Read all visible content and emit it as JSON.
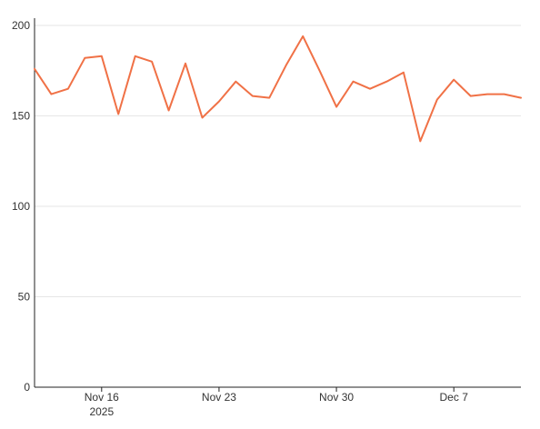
{
  "chart_data": {
    "type": "line",
    "title": "",
    "xlabel": "",
    "ylabel": "",
    "ylim": [
      0,
      200
    ],
    "yticks": [
      0,
      50,
      100,
      150,
      200
    ],
    "grid": {
      "horizontal": true,
      "vertical": false
    },
    "x_range": [
      "2025-11-12",
      "2025-12-11"
    ],
    "xtick_labels": [
      {
        "date": "2025-11-16",
        "label": "Nov 16",
        "sublabel": "2025"
      },
      {
        "date": "2025-11-23",
        "label": "Nov 23",
        "sublabel": ""
      },
      {
        "date": "2025-11-30",
        "label": "Nov 30",
        "sublabel": ""
      },
      {
        "date": "2025-12-07",
        "label": "Dec 7",
        "sublabel": ""
      }
    ],
    "series": [
      {
        "color": "#f07146",
        "x": [
          "2025-11-12",
          "2025-11-13",
          "2025-11-14",
          "2025-11-15",
          "2025-11-16",
          "2025-11-17",
          "2025-11-18",
          "2025-11-19",
          "2025-11-20",
          "2025-11-21",
          "2025-11-22",
          "2025-11-23",
          "2025-11-24",
          "2025-11-25",
          "2025-11-26",
          "2025-11-27",
          "2025-11-28",
          "2025-11-29",
          "2025-11-30",
          "2025-12-01",
          "2025-12-02",
          "2025-12-03",
          "2025-12-04",
          "2025-12-05",
          "2025-12-06",
          "2025-12-07",
          "2025-12-08",
          "2025-12-09",
          "2025-12-10",
          "2025-12-11"
        ],
        "values": [
          176,
          162,
          165,
          182,
          183,
          151,
          183,
          180,
          153,
          179,
          149,
          158,
          169,
          161,
          160,
          178,
          194,
          175,
          155,
          169,
          165,
          169,
          174,
          136,
          159,
          170,
          161,
          162,
          162,
          160
        ]
      }
    ]
  }
}
